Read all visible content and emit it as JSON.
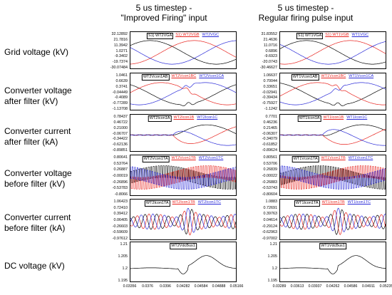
{
  "columns": [
    {
      "title_line1": "5 us timestep -",
      "title_line2": "\"Improved Firing\" input"
    },
    {
      "title_line1": "5 us timestep -",
      "title_line2": "Regular firing pulse input"
    }
  ],
  "row_labels": [
    {
      "l1": "Grid voltage (kV)",
      "l2": ""
    },
    {
      "l1": "Converter voltage",
      "l2": "after filter (kV)"
    },
    {
      "l1": "Converter current",
      "l2": "after filter (kA)"
    },
    {
      "l1": "Converter voltage",
      "l2": "before filter (kV)"
    },
    {
      "l1": "Converter current",
      "l2": "before filter (kA)"
    },
    {
      "l1": "DC voltage (kV)",
      "l2": ""
    }
  ],
  "colors": {
    "phase_a": "#000000",
    "phase_b": "#e8241f",
    "phase_c": "#2a2ad8"
  },
  "chart_data": [
    {
      "type": "line",
      "column": 0,
      "xticks": [
        "0.03356",
        "0.0376",
        "0.0396",
        "0.04282",
        "0.04584",
        "0.04888",
        "0.05166"
      ],
      "panels": [
        {
          "id": "grid",
          "legend": [
            "S1) WT2VGA",
            "S1) WT2VGB",
            "WT2VGC"
          ],
          "yticks": [
            "32.12892",
            "21.7816",
            "11.3942",
            "1.0271",
            "-9.3402",
            "-19.7374",
            "-30.07484"
          ]
        },
        {
          "id": "conv_after",
          "legend": [
            "WT2Vcon1AB",
            "WT2Vcon1BC",
            "WT2Vcon1CA"
          ],
          "yticks": [
            "1.0461",
            "0.6639",
            "0.3741",
            "-0.04449",
            "-0.4089",
            "-0.77289",
            "-1.13708"
          ]
        },
        {
          "id": "curr_after",
          "legend": [
            "WT2Icon1A",
            "WT2Icon1B",
            "WT2Icon1C"
          ],
          "yticks": [
            "0.78437",
            "0.46722",
            "0.21000",
            "-0.06707",
            "-0.34422",
            "-0.62136",
            "-0.89851"
          ]
        },
        {
          "id": "conv_before",
          "legend": [
            "WT2Vcon1TA",
            "WT2Vcon1TB",
            "WT2Vcon1TC"
          ],
          "yticks": [
            "0.80641",
            "0.53764",
            "0.26887",
            "-0.00019",
            "-0.26896",
            "-0.53783",
            "-0.8066"
          ]
        },
        {
          "id": "curr_before",
          "legend": [
            "WT2Icon1TA",
            "WT2Icon1TB",
            "WT2Icon1TC"
          ],
          "yticks": [
            "1.06423",
            "0.72410",
            "0.39412",
            "0.06405",
            "-0.26603",
            "-0.59609",
            "-0.97612"
          ]
        },
        {
          "id": "dc",
          "legend": [
            "WT2VdcBus1"
          ],
          "yticks": [
            "1.21",
            "1.205",
            "1.2",
            "1.195"
          ]
        }
      ]
    },
    {
      "type": "line",
      "column": 1,
      "xticks": [
        "0.03289",
        "0.03613",
        "0.03937",
        "0.04262",
        "0.04586",
        "0.04911",
        "0.05235"
      ],
      "panels": [
        {
          "id": "grid",
          "legend": [
            "S1) WT1VGA",
            "S1) WT1VGB",
            "WT1VGC"
          ],
          "yticks": [
            "31.83552",
            "21.4636",
            "11.0716",
            "0.6896",
            "-9.6923",
            "-20.0743",
            "-30.46627"
          ]
        },
        {
          "id": "conv_after",
          "legend": [
            "WT1Vcon1AB",
            "WT1Vcon1BC",
            "WT1Vcon1CA"
          ],
          "yticks": [
            "1.06637",
            "0.70044",
            "0.33651",
            "-0.02941",
            "-0.39434",
            "-0.75927",
            "-1.1242"
          ]
        },
        {
          "id": "curr_after",
          "legend": [
            "WT1Icon1A",
            "WT1Icon1B",
            "WT1Icon1C"
          ],
          "yticks": [
            "0.7701",
            "0.46236",
            "0.21465",
            "-0.06307",
            "-0.34079",
            "-0.61852",
            "-0.89624"
          ]
        },
        {
          "id": "conv_before",
          "legend": [
            "WT1Vcon1TA",
            "WT1Vcon1TB",
            "WT1Vcon1TC"
          ],
          "yticks": [
            "0.80561",
            "0.53706",
            "0.26839",
            "-0.00022",
            "-0.26883",
            "-0.53743",
            "-0.80604"
          ]
        },
        {
          "id": "curr_before",
          "legend": [
            "WT1Icon1TA",
            "WT1Icon1TB",
            "WT1Icon1TC"
          ],
          "yticks": [
            "1.0883",
            "0.72691",
            "0.39763",
            "0.04614",
            "-0.29124",
            "-0.62963",
            "-0.97002"
          ]
        },
        {
          "id": "dc",
          "legend": [
            "WT1VdcBus1"
          ],
          "yticks": [
            "1.21",
            "1.205",
            "1.2",
            "1.195"
          ]
        }
      ]
    }
  ]
}
